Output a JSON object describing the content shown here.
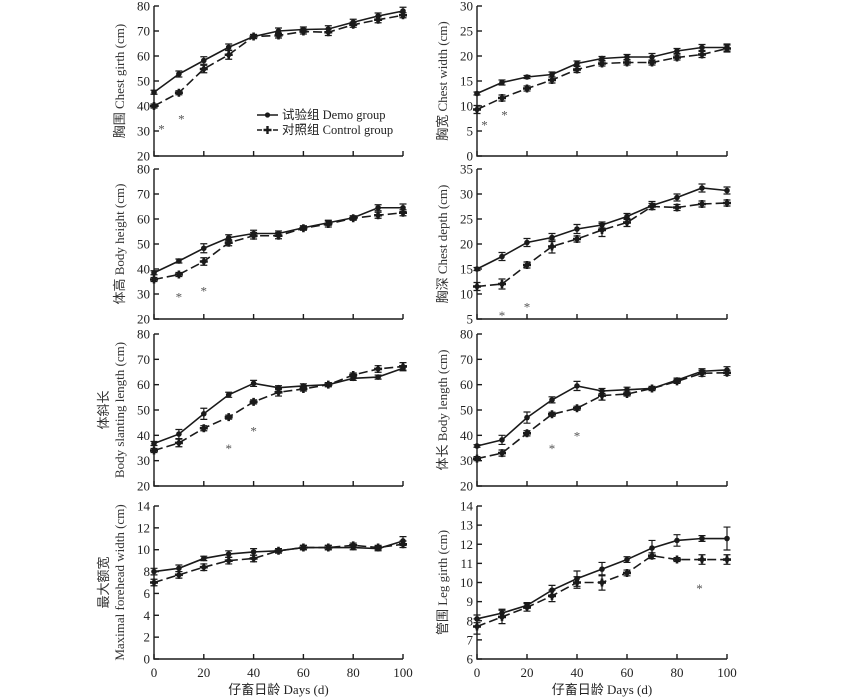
{
  "chart_data": [
    {
      "id": "chest-girth",
      "type": "line",
      "ylabel_cn": "胸围",
      "ylabel_en": "Chest girth (cm)",
      "ylim": [
        20,
        80
      ],
      "yticks": [
        20,
        30,
        40,
        50,
        60,
        70,
        80
      ],
      "x": [
        0,
        10,
        20,
        30,
        40,
        50,
        60,
        70,
        80,
        90,
        100
      ],
      "xlim": [
        0,
        100
      ],
      "xticks": [
        0,
        20,
        40,
        60,
        80,
        100
      ],
      "series": [
        {
          "name": "试验组 Demo group",
          "values": [
            45.5,
            52.8,
            58.2,
            63.5,
            67.8,
            70.0,
            70.6,
            70.8,
            73.5,
            76.0,
            78.0
          ],
          "err": [
            0.8,
            1.2,
            1.5,
            1.3,
            0.8,
            1.2,
            1.0,
            1.3,
            1.2,
            1.2,
            1.5
          ]
        },
        {
          "name": "对照组 Control group",
          "values": [
            40.0,
            45.3,
            54.8,
            60.5,
            67.8,
            68.2,
            69.8,
            69.5,
            72.5,
            74.5,
            76.3
          ],
          "err": [
            0.8,
            0.8,
            1.5,
            1.8,
            0.8,
            1.0,
            1.0,
            1.3,
            1.0,
            1.2,
            1.0
          ]
        }
      ],
      "annotations": [
        {
          "text": "*",
          "x": 3,
          "y": 31
        },
        {
          "text": "*",
          "x": 11,
          "y": 35
        }
      ],
      "show_legend": true
    },
    {
      "id": "chest-width",
      "type": "line",
      "ylabel_cn": "胸宽",
      "ylabel_en": "Chest width (cm)",
      "ylim": [
        0,
        30
      ],
      "yticks": [
        0,
        5,
        10,
        15,
        20,
        25,
        30
      ],
      "x": [
        0,
        10,
        20,
        30,
        40,
        50,
        60,
        70,
        80,
        90,
        100
      ],
      "xlim": [
        0,
        100
      ],
      "xticks": [
        0,
        20,
        40,
        60,
        80,
        100
      ],
      "series": [
        {
          "name": "试验组 Demo group",
          "values": [
            12.5,
            14.7,
            15.8,
            16.3,
            18.5,
            19.5,
            19.8,
            19.8,
            21.0,
            21.7,
            21.7
          ],
          "err": [
            0.3,
            0.5,
            0.3,
            0.5,
            0.5,
            0.4,
            0.5,
            0.7,
            0.5,
            0.6,
            0.7
          ]
        },
        {
          "name": "对照组 Control group",
          "values": [
            9.3,
            11.6,
            13.5,
            15.2,
            17.3,
            18.5,
            18.7,
            18.7,
            19.7,
            20.3,
            21.5
          ],
          "err": [
            0.8,
            0.6,
            0.5,
            0.6,
            0.6,
            0.5,
            0.5,
            0.5,
            0.5,
            0.6,
            0.7
          ]
        }
      ],
      "annotations": [
        {
          "text": "*",
          "x": 3,
          "y": 6.3
        },
        {
          "text": "*",
          "x": 11,
          "y": 8.3
        }
      ],
      "show_legend": false
    },
    {
      "id": "body-height",
      "type": "line",
      "ylabel_cn": "体高",
      "ylabel_en": "Body height (cm)",
      "ylim": [
        20,
        80
      ],
      "yticks": [
        20,
        30,
        40,
        50,
        60,
        70,
        80
      ],
      "x": [
        0,
        10,
        20,
        30,
        40,
        50,
        60,
        70,
        80,
        90,
        100
      ],
      "xlim": [
        0,
        100
      ],
      "xticks": [
        0,
        20,
        40,
        60,
        80,
        100
      ],
      "series": [
        {
          "name": "试验组 Demo group",
          "values": [
            38.5,
            43.2,
            48.3,
            52.5,
            54.2,
            54.2,
            56.5,
            58.5,
            60.5,
            64.5,
            64.5
          ],
          "err": [
            0.8,
            0.8,
            1.8,
            1.2,
            1.3,
            1.0,
            0.8,
            1.0,
            0.8,
            1.2,
            1.5
          ]
        },
        {
          "name": "对照组 Control group",
          "values": [
            35.8,
            37.8,
            43.0,
            50.5,
            53.3,
            53.3,
            56.3,
            58.0,
            60.3,
            61.5,
            62.5
          ],
          "err": [
            0.8,
            0.8,
            1.5,
            1.2,
            1.3,
            1.2,
            0.8,
            1.2,
            0.8,
            1.2,
            1.2
          ]
        }
      ],
      "annotations": [
        {
          "text": "*",
          "x": 10,
          "y": 29
        },
        {
          "text": "*",
          "x": 20,
          "y": 31.5
        }
      ],
      "show_legend": false
    },
    {
      "id": "chest-depth",
      "type": "line",
      "ylabel_cn": "胸深",
      "ylabel_en": "Chest depth (cm)",
      "ylim": [
        5,
        35
      ],
      "yticks": [
        5,
        10,
        15,
        20,
        25,
        30,
        35
      ],
      "x": [
        0,
        10,
        20,
        30,
        40,
        50,
        60,
        70,
        80,
        90,
        100
      ],
      "xlim": [
        0,
        100
      ],
      "xticks": [
        0,
        20,
        40,
        60,
        80,
        100
      ],
      "series": [
        {
          "name": "试验组 Demo group",
          "values": [
            15.0,
            17.5,
            20.3,
            21.3,
            23.0,
            23.8,
            25.5,
            27.7,
            29.3,
            31.2,
            30.7
          ],
          "err": [
            0.3,
            0.8,
            0.8,
            0.8,
            0.9,
            0.6,
            0.6,
            0.8,
            0.7,
            0.8,
            0.7
          ]
        },
        {
          "name": "对照组 Control group",
          "values": [
            11.5,
            12.0,
            15.8,
            19.5,
            21.0,
            22.8,
            24.3,
            27.5,
            27.3,
            28.0,
            28.2
          ],
          "err": [
            0.8,
            1.0,
            0.6,
            1.3,
            0.6,
            1.3,
            0.8,
            0.6,
            0.6,
            0.6,
            0.6
          ]
        }
      ],
      "annotations": [
        {
          "text": "*",
          "x": 10,
          "y": 5.8
        },
        {
          "text": "*",
          "x": 20,
          "y": 7.5
        }
      ],
      "show_legend": false
    },
    {
      "id": "body-slanting-length",
      "type": "line",
      "ylabel_cn": "体斜长",
      "ylabel_en": "Body slanting length (cm)",
      "ylim": [
        20,
        80
      ],
      "yticks": [
        20,
        30,
        40,
        50,
        60,
        70,
        80
      ],
      "x": [
        0,
        10,
        20,
        30,
        40,
        50,
        60,
        70,
        80,
        90,
        100
      ],
      "xlim": [
        0,
        100
      ],
      "xticks": [
        0,
        20,
        40,
        60,
        80,
        100
      ],
      "series": [
        {
          "name": "试验组 Demo group",
          "values": [
            36.8,
            40.5,
            48.5,
            56.0,
            60.5,
            58.8,
            59.5,
            60.0,
            62.5,
            63.0,
            66.5
          ],
          "err": [
            0.8,
            1.8,
            2.2,
            1.0,
            1.2,
            0.8,
            0.8,
            0.8,
            0.8,
            0.8,
            1.0
          ]
        },
        {
          "name": "对照组 Control group",
          "values": [
            34.0,
            37.0,
            42.8,
            47.2,
            53.2,
            57.0,
            58.3,
            60.0,
            63.8,
            66.2,
            67.2
          ],
          "err": [
            0.8,
            1.5,
            1.0,
            0.8,
            0.8,
            1.5,
            0.8,
            0.8,
            0.8,
            1.3,
            1.5
          ]
        }
      ],
      "annotations": [
        {
          "text": "*",
          "x": 30,
          "y": 35
        },
        {
          "text": "*",
          "x": 40,
          "y": 42
        }
      ],
      "show_legend": false
    },
    {
      "id": "body-length",
      "type": "line",
      "ylabel_cn": "体长",
      "ylabel_en": "Body length (cm)",
      "ylim": [
        20,
        80
      ],
      "yticks": [
        20,
        30,
        40,
        50,
        60,
        70,
        80
      ],
      "x": [
        0,
        10,
        20,
        30,
        40,
        50,
        60,
        70,
        80,
        90,
        100
      ],
      "xlim": [
        0,
        100
      ],
      "xticks": [
        0,
        20,
        40,
        60,
        80,
        100
      ],
      "series": [
        {
          "name": "试验组 Demo group",
          "values": [
            35.8,
            38.2,
            47.0,
            54.0,
            59.5,
            57.5,
            58.0,
            58.5,
            61.8,
            65.3,
            65.8
          ],
          "err": [
            0.5,
            1.8,
            2.2,
            1.2,
            1.8,
            1.0,
            1.0,
            0.8,
            0.8,
            1.0,
            1.3
          ]
        },
        {
          "name": "对照组 Control group",
          "values": [
            30.8,
            33.0,
            40.8,
            48.3,
            50.7,
            55.7,
            56.3,
            58.5,
            61.3,
            64.5,
            64.7
          ],
          "err": [
            0.8,
            1.2,
            1.0,
            0.8,
            0.8,
            1.8,
            0.8,
            0.8,
            0.8,
            1.2,
            1.0
          ]
        }
      ],
      "annotations": [
        {
          "text": "*",
          "x": 30,
          "y": 35
        },
        {
          "text": "*",
          "x": 40,
          "y": 40
        }
      ],
      "show_legend": false
    },
    {
      "id": "maximal-forehead-width",
      "type": "line",
      "ylabel_cn": "最大额宽",
      "ylabel_en": "Maximal forehead width (cm)",
      "ylim": [
        0,
        14
      ],
      "yticks": [
        0,
        2,
        4,
        6,
        8,
        10,
        12,
        14
      ],
      "x": [
        0,
        10,
        20,
        30,
        40,
        50,
        60,
        70,
        80,
        90,
        100
      ],
      "xlim": [
        0,
        100
      ],
      "xticks": [
        0,
        20,
        40,
        60,
        80,
        100
      ],
      "xlabel": "仔畜日龄 Days (d)",
      "series": [
        {
          "name": "试验组 Demo group",
          "values": [
            8.0,
            8.3,
            9.2,
            9.6,
            9.8,
            9.9,
            10.2,
            10.2,
            10.2,
            10.1,
            10.8
          ],
          "err": [
            0.3,
            0.3,
            0.2,
            0.3,
            0.3,
            0.2,
            0.2,
            0.2,
            0.2,
            0.2,
            0.4
          ]
        },
        {
          "name": "对照组 Control group",
          "values": [
            7.0,
            7.7,
            8.4,
            9.0,
            9.2,
            9.9,
            10.2,
            10.2,
            10.4,
            10.2,
            10.5
          ],
          "err": [
            0.3,
            0.3,
            0.3,
            0.3,
            0.3,
            0.2,
            0.2,
            0.2,
            0.2,
            0.2,
            0.3
          ]
        }
      ],
      "annotations": [],
      "show_legend": false
    },
    {
      "id": "leg-girth",
      "type": "line",
      "ylabel_cn": "管围",
      "ylabel_en": "Leg girth (cm)",
      "ylim": [
        6,
        14
      ],
      "yticks": [
        6,
        7,
        8,
        9,
        10,
        11,
        12,
        13,
        14
      ],
      "x": [
        0,
        10,
        20,
        30,
        40,
        50,
        60,
        70,
        80,
        90,
        100
      ],
      "xlim": [
        0,
        100
      ],
      "xticks": [
        0,
        20,
        40,
        60,
        80,
        100
      ],
      "xlabel": "仔畜日龄 Days (d)",
      "series": [
        {
          "name": "试验组 Demo group",
          "values": [
            8.1,
            8.4,
            8.8,
            9.6,
            10.2,
            10.7,
            11.2,
            11.8,
            12.2,
            12.3,
            12.3
          ],
          "err": [
            0.2,
            0.2,
            0.15,
            0.25,
            0.4,
            0.35,
            0.15,
            0.4,
            0.3,
            0.15,
            0.6
          ]
        },
        {
          "name": "对照组 Control group",
          "values": [
            7.7,
            8.2,
            8.7,
            9.3,
            10.0,
            10.0,
            10.5,
            11.4,
            11.2,
            11.2,
            11.2
          ],
          "err": [
            0.4,
            0.35,
            0.2,
            0.3,
            0.3,
            0.4,
            0.15,
            0.15,
            0.1,
            0.25,
            0.25
          ]
        }
      ],
      "annotations": [
        {
          "text": "*",
          "x": 89,
          "y": 9.7
        }
      ],
      "show_legend": false
    }
  ],
  "legend": {
    "demo": "试验组 Demo group",
    "control": "对照组 Control group"
  },
  "xaxis_title": "仔畜日龄 Days (d)"
}
